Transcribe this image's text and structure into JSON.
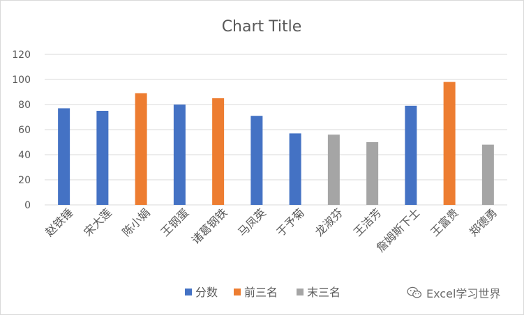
{
  "chart_data": {
    "type": "bar",
    "title": "Chart Title",
    "categories": [
      "赵铁锤",
      "宋大莲",
      "陈小娟",
      "王钢蛋",
      "诸葛钢铁",
      "马凤英",
      "于予菊",
      "龙淑芬",
      "王洁芳",
      "詹姆斯下士",
      "王富贵",
      "郑德勇"
    ],
    "values": [
      77,
      75,
      89,
      80,
      85,
      71,
      57,
      56,
      50,
      79,
      98,
      48
    ],
    "groups": [
      "分数",
      "分数",
      "前三名",
      "分数",
      "前三名",
      "分数",
      "分数",
      "末三名",
      "末三名",
      "分数",
      "前三名",
      "末三名"
    ],
    "series": [
      {
        "name": "分数",
        "color": "#4472C4"
      },
      {
        "name": "前三名",
        "color": "#ED7D31"
      },
      {
        "name": "末三名",
        "color": "#A5A5A5"
      }
    ],
    "ylim": [
      0,
      120
    ],
    "yticks": [
      0,
      20,
      40,
      60,
      80,
      100,
      120
    ],
    "grid": true,
    "legend_position": "bottom"
  },
  "watermark": {
    "text": "Excel学习世界",
    "icon": "wechat-icon"
  }
}
